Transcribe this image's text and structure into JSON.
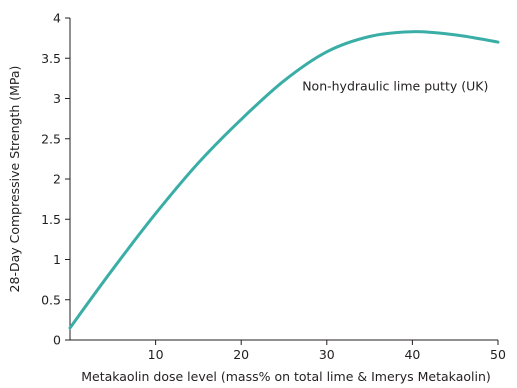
{
  "chart_data": {
    "type": "line",
    "title": "",
    "xlabel": "Metakaolin dose level (mass% on total lime & Imerys Metakaolin)",
    "ylabel": "28-Day Compressive Strength (MPa)",
    "xlim": [
      0,
      50
    ],
    "ylim": [
      0,
      4
    ],
    "x_ticks": [
      10,
      20,
      30,
      40,
      50
    ],
    "y_ticks": [
      0,
      0.5,
      1,
      1.5,
      2,
      2.5,
      3,
      3.5,
      4
    ],
    "x_tick_labels": [
      "10",
      "20",
      "30",
      "40",
      "50"
    ],
    "y_tick_labels": [
      "0",
      "0.5",
      "1",
      "1.5",
      "2",
      "2.5",
      "3",
      "3.5",
      "4"
    ],
    "grid": false,
    "legend": "none",
    "series": [
      {
        "name": "Non-hydraulic lime putty (UK)",
        "color": "#3aaea6",
        "x": [
          0,
          5,
          10,
          15,
          20,
          25,
          30,
          35,
          40,
          45,
          50
        ],
        "y": [
          0.15,
          0.88,
          1.57,
          2.2,
          2.74,
          3.22,
          3.58,
          3.77,
          3.83,
          3.79,
          3.7
        ]
      }
    ],
    "annotations": [
      {
        "text": "Non-hydraulic lime putty (UK)",
        "x": 38,
        "y": 3.1
      }
    ]
  }
}
